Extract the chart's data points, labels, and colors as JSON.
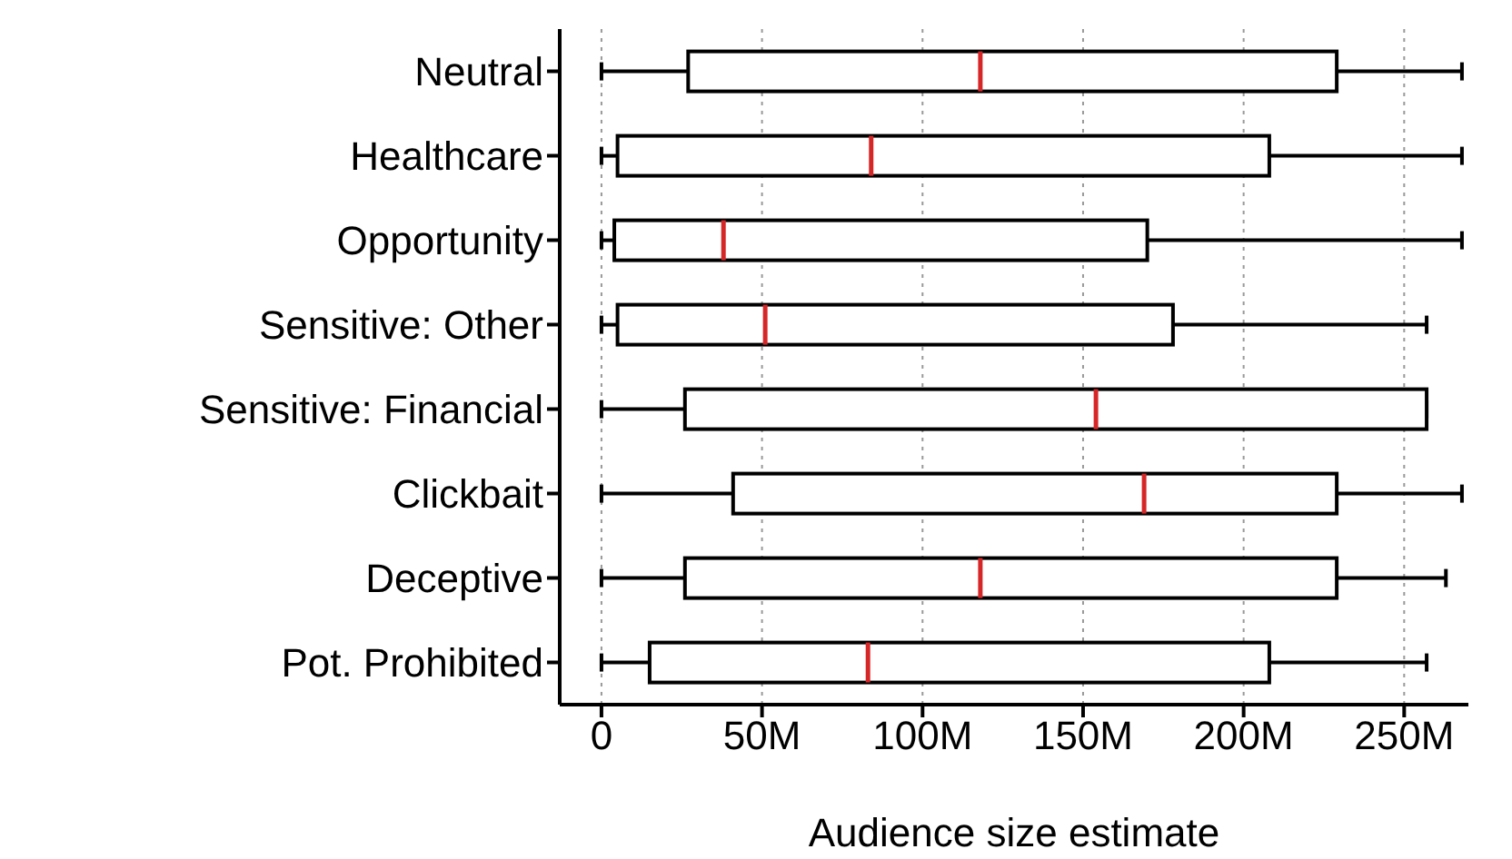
{
  "chart_data": {
    "type": "box",
    "orientation": "horizontal",
    "xlabel": "Audience size estimate",
    "categories": [
      "Neutral",
      "Healthcare",
      "Opportunity",
      "Sensitive: Other",
      "Sensitive: Financial",
      "Clickbait",
      "Deceptive",
      "Pot. Prohibited"
    ],
    "boxes": [
      {
        "low": 0,
        "q1": 27,
        "median": 118,
        "q3": 229,
        "high": 268
      },
      {
        "low": 0,
        "q1": 5,
        "median": 84,
        "q3": 208,
        "high": 268
      },
      {
        "low": 0,
        "q1": 4,
        "median": 38,
        "q3": 170,
        "high": 268
      },
      {
        "low": 0,
        "q1": 5,
        "median": 51,
        "q3": 178,
        "high": 257
      },
      {
        "low": 0,
        "q1": 26,
        "median": 154,
        "q3": 257,
        "high": 257
      },
      {
        "low": 0,
        "q1": 41,
        "median": 169,
        "q3": 229,
        "high": 268
      },
      {
        "low": 0,
        "q1": 26,
        "median": 118,
        "q3": 229,
        "high": 263
      },
      {
        "low": 0,
        "q1": 15,
        "median": 83,
        "q3": 208,
        "high": 257
      }
    ],
    "color": "#000000",
    "xlim": [
      -13,
      270
    ],
    "xticks": [
      {
        "value": 0,
        "label": "0"
      },
      {
        "value": 50,
        "label": "50M"
      },
      {
        "value": 100,
        "label": "100M"
      },
      {
        "value": 150,
        "label": "150M"
      },
      {
        "value": 200,
        "label": "200M"
      },
      {
        "value": 250,
        "label": "250M"
      }
    ],
    "grid": "x"
  }
}
